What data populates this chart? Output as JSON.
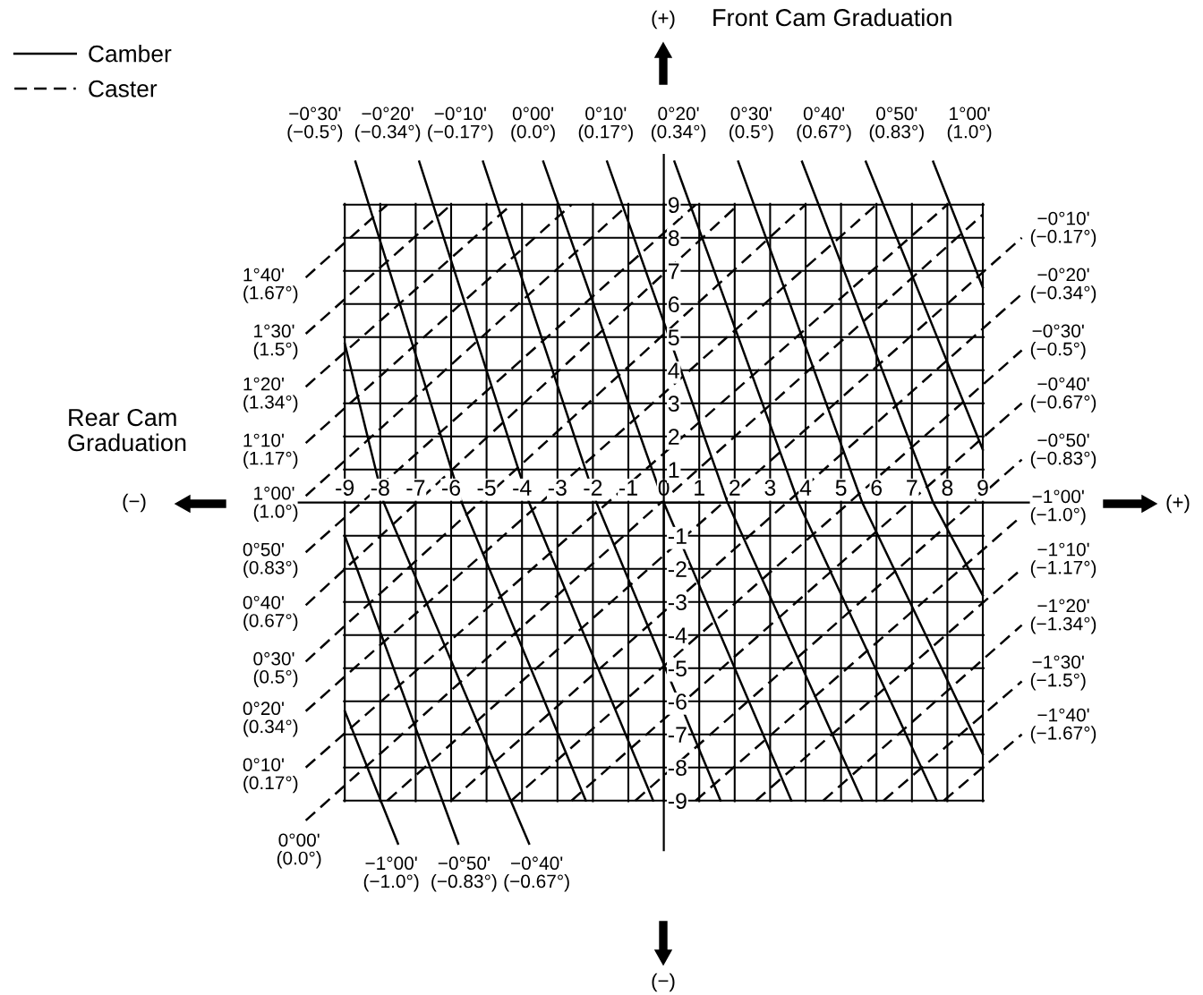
{
  "chart_data": {
    "type": "line",
    "xlim": [
      -10.3,
      10.3
    ],
    "ylim": [
      -10.5,
      10.5
    ],
    "xticks": [
      -9,
      -8,
      -7,
      -6,
      -5,
      -4,
      -3,
      -2,
      -1,
      0,
      1,
      2,
      3,
      4,
      5,
      6,
      7,
      8,
      9
    ],
    "yticks": [
      -9,
      -8,
      -7,
      -6,
      -5,
      -4,
      -3,
      -2,
      -1,
      {
        "value": 0,
        "label": null
      },
      1,
      2,
      3,
      4,
      5,
      6,
      7,
      8,
      9
    ],
    "grid": true,
    "legend": "top left",
    "series": [
      {
        "name": "Camber",
        "color": "#000000",
        "line_style": "solid",
        "x": [
          -8.7,
          -5.7,
          -2.2,
          null,
          -6.9,
          -3.8,
          -0.3,
          null,
          -5.1,
          -1.9,
          1.6,
          null,
          -3.4,
          0.0,
          3.6,
          null,
          -1.6,
          1.8,
          5.6,
          null,
          0.3,
          3.8,
          7.7,
          null,
          2.1,
          5.6,
          9.0,
          null,
          3.9,
          7.6,
          9.0,
          null,
          5.7,
          9.0,
          null,
          7.6,
          9.0,
          null,
          -9.0,
          -7.5,
          null,
          -9.0,
          -5.8,
          null,
          -9.0,
          -7.9,
          -3.8
        ],
        "values": [
          10.3,
          0.0,
          -9.0,
          null,
          10.3,
          0.0,
          -9.0,
          null,
          10.3,
          0.0,
          -9.0,
          null,
          10.3,
          0.0,
          -9.0,
          null,
          10.3,
          0.0,
          -9.0,
          null,
          10.3,
          0.0,
          -9.0,
          null,
          10.3,
          0.0,
          -7.6,
          null,
          10.3,
          0.0,
          -2.8,
          null,
          10.3,
          1.6,
          null,
          10.3,
          6.5,
          null,
          -6.3,
          -10.3,
          null,
          -1.0,
          -10.3,
          null,
          4.8,
          0.0,
          -10.3
        ]
      },
      {
        "name": "Caster",
        "color": "#000000",
        "line_style": "dashed",
        "x": [
          -10.1,
          -7.8,
          null,
          -10.1,
          -6.0,
          null,
          -10.1,
          -4.3,
          null,
          -10.1,
          -2.6,
          null,
          -10.1,
          -1.0,
          null,
          -10.1,
          0.9,
          null,
          -10.1,
          2.1,
          null,
          -10.1,
          4.0,
          null,
          -10.1,
          6.0,
          null,
          -10.1,
          8.0,
          null,
          -10.1,
          9.0,
          null,
          -7.8,
          10.1,
          null,
          -6.0,
          10.1,
          null,
          -4.3,
          10.1,
          null,
          -2.6,
          10.1,
          null,
          -0.8,
          10.1,
          null,
          0.9,
          10.1,
          null,
          2.6,
          10.1,
          null,
          4.5,
          10.1,
          null,
          6.2,
          10.1,
          null,
          7.9,
          10.1
        ],
        "values": [
          6.8,
          9.0,
          null,
          5.1,
          9.0,
          null,
          3.5,
          9.0,
          null,
          1.8,
          9.0,
          null,
          0.2,
          9.0,
          null,
          -1.5,
          9.0,
          null,
          -3.1,
          9.0,
          null,
          -4.8,
          9.0,
          null,
          -6.3,
          9.0,
          null,
          -8.0,
          9.0,
          null,
          -9.6,
          8.7,
          null,
          -9.0,
          8.0,
          null,
          -9.0,
          6.3,
          null,
          -9.0,
          4.6,
          null,
          -9.0,
          3.0,
          null,
          -9.0,
          1.3,
          null,
          -9.0,
          -0.4,
          null,
          -9.0,
          -2.0,
          null,
          -9.0,
          -3.7,
          null,
          -9.0,
          -5.4,
          null,
          -9.0,
          -7.0
        ]
      }
    ],
    "annotations": [
      "(+)",
      "Front Cam Graduation",
      "(−)",
      "Rear Cam\nGraduation",
      "(−)",
      "(+)",
      {
        "text": "−0°30'\n(−0.5°)",
        "x": -8.7,
        "y": 10.3
      },
      {
        "text": "−0°20'\n(−0.34°)",
        "x": -6.9,
        "y": 10.3
      },
      {
        "text": "−0°10'\n(−0.17°)",
        "x": -5.1,
        "y": 10.3
      },
      {
        "text": "0°00'\n(0.0°)",
        "x": -3.4,
        "y": 10.3
      },
      {
        "text": "0°10'\n(0.17°)",
        "x": -1.6,
        "y": 10.3
      },
      {
        "text": "0°20'\n(0.34°)",
        "x": 0.3,
        "y": 10.3
      },
      {
        "text": "0°30'\n(0.5°)",
        "x": 2.1,
        "y": 10.3
      },
      {
        "text": "0°40'\n(0.67°)",
        "x": 3.9,
        "y": 10.3
      },
      {
        "text": "0°50'\n(0.83°)",
        "x": 5.7,
        "y": 10.3
      },
      {
        "text": "1°00'\n(1.0°)",
        "x": 7.6,
        "y": 10.3
      },
      {
        "text": "−1°00'\n(−1.0°)",
        "x": -7.5,
        "y": -10.3
      },
      {
        "text": "−0°50'\n(−0.83°)",
        "x": -5.8,
        "y": -10.3
      },
      {
        "text": "−0°40'\n(−0.67°)",
        "x": -3.8,
        "y": -10.3
      },
      {
        "text": "1°40'\n(1.67°)",
        "x": -10.1,
        "y": 6.8
      },
      {
        "text": "1°30'\n(1.5°)",
        "x": -10.1,
        "y": 5.1
      },
      {
        "text": "1°20'\n(1.34°)",
        "x": -10.1,
        "y": 3.5
      },
      {
        "text": "1°10'\n(1.17°)",
        "x": -10.1,
        "y": 1.8
      },
      {
        "text": "1°00'\n(1.0°)",
        "x": -10.1,
        "y": 0.2
      },
      {
        "text": "0°50'\n(0.83°)",
        "x": -10.1,
        "y": -1.5
      },
      {
        "text": "0°40'\n(0.67°)",
        "x": -10.1,
        "y": -3.1
      },
      {
        "text": "0°30'\n(0.5°)",
        "x": -10.1,
        "y": -4.8
      },
      {
        "text": "0°20'\n(0.34°)",
        "x": -10.1,
        "y": -6.3
      },
      {
        "text": "0°10'\n(0.17°)",
        "x": -10.1,
        "y": -8.0
      },
      {
        "text": "0°00'\n(0.0°)",
        "x": -10.1,
        "y": -9.6
      },
      {
        "text": "−0°10'\n(−0.17°)",
        "x": 10.1,
        "y": 8.0
      },
      {
        "text": "−0°20'\n(−0.34°)",
        "x": 10.1,
        "y": 6.3
      },
      {
        "text": "−0°30'\n(−0.5°)",
        "x": 10.1,
        "y": 4.6
      },
      {
        "text": "−0°40'\n(−0.67°)",
        "x": 10.1,
        "y": 3.0
      },
      {
        "text": "−0°50'\n(−0.83°)",
        "x": 10.1,
        "y": 1.3
      },
      {
        "text": "−1°00'\n(−1.0°)",
        "x": 10.1,
        "y": -0.4
      },
      {
        "text": "−1°10'\n(−1.17°)",
        "x": 10.1,
        "y": -2.0
      },
      {
        "text": "−1°20'\n(−1.34°)",
        "x": 10.1,
        "y": -3.7
      },
      {
        "text": "−1°30'\n(−1.5°)",
        "x": 10.1,
        "y": -5.4
      },
      {
        "text": "−1°40'\n(−1.67°)",
        "x": 10.1,
        "y": -7.0
      }
    ]
  }
}
